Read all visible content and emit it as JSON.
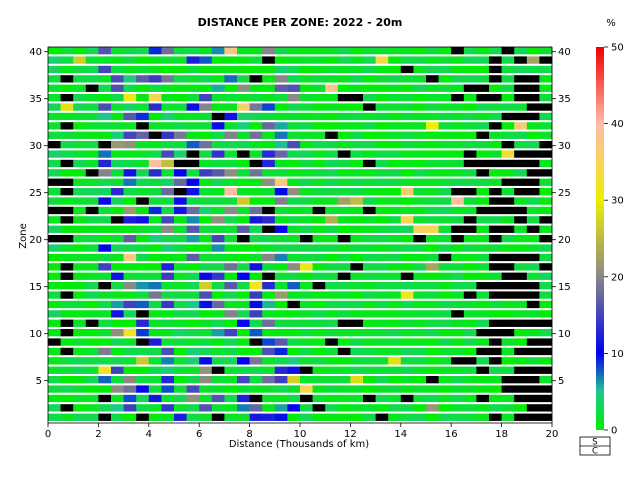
{
  "chart_data": {
    "type": "heatmap",
    "title": "DISTANCE PER ZONE: 2022 - 20m",
    "xlabel": "Distance (Thousands of km)",
    "ylabel": "Zone",
    "xlim": [
      0,
      20
    ],
    "ylim": [
      0.5,
      40.5
    ],
    "x_ticks": [
      0,
      2,
      4,
      6,
      8,
      10,
      12,
      14,
      16,
      18,
      20
    ],
    "y_ticks": [
      5,
      10,
      15,
      20,
      25,
      30,
      35,
      40
    ],
    "zones": 40,
    "distance_bin_km_thousands": 0.5,
    "grid": false,
    "colorbar": {
      "unit": "%",
      "min": 0,
      "max": 50,
      "ticks": [
        0,
        10,
        20,
        30,
        40,
        50
      ],
      "stops": [
        {
          "value": 0,
          "color": "#00ee00"
        },
        {
          "value": 5,
          "color": "#20c890"
        },
        {
          "value": 10,
          "color": "#0000ee"
        },
        {
          "value": 20,
          "color": "#888888"
        },
        {
          "value": 30,
          "color": "#eeee00"
        },
        {
          "value": 40,
          "color": "#ffbbaa"
        },
        {
          "value": 50,
          "color": "#ee0000"
        }
      ],
      "no_data_color": "#000000"
    },
    "legend_box": {
      "lines": [
        "S",
        "C"
      ],
      "placement": "bottom-right"
    }
  }
}
